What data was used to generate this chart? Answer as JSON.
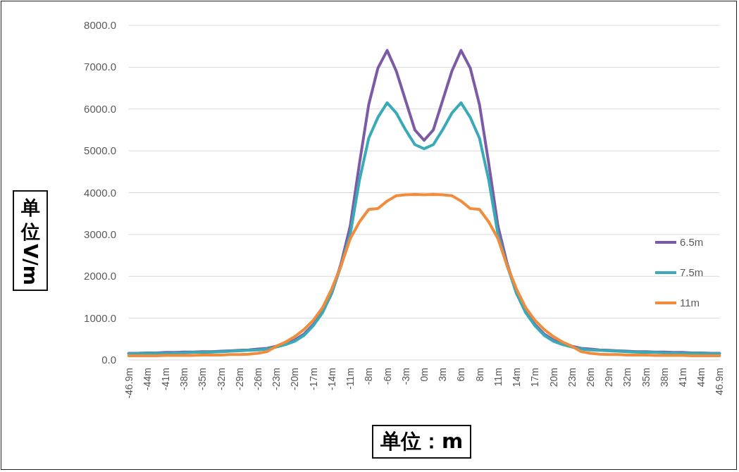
{
  "chart_data": {
    "type": "line",
    "xlabel": "单位：m",
    "ylabel": "单位V/m",
    "categories": [
      "-46.9m",
      null,
      "-44m",
      null,
      "-41m",
      null,
      "-38m",
      null,
      "-35m",
      null,
      "-32m",
      null,
      "-29m",
      null,
      "-26m",
      null,
      "-23m",
      null,
      "-20m",
      null,
      "-17m",
      null,
      "-14m",
      null,
      "-11m",
      null,
      "-8m",
      null,
      "-6m",
      null,
      "-3m",
      null,
      "0m",
      null,
      "3m",
      null,
      "6m",
      null,
      "8m",
      null,
      "11m",
      null,
      "14m",
      null,
      "17m",
      null,
      "20m",
      null,
      "23m",
      null,
      "26m",
      null,
      "29m",
      null,
      "32m",
      null,
      "35m",
      null,
      "38m",
      null,
      "41m",
      null,
      "44m",
      null,
      "46.9m"
    ],
    "series": [
      {
        "name": "6.5m",
        "color": "#7b5aa6",
        "values": [
          160,
          160,
          170,
          170,
          180,
          180,
          190,
          190,
          200,
          200,
          210,
          220,
          230,
          240,
          260,
          280,
          330,
          390,
          480,
          620,
          850,
          1150,
          1600,
          2300,
          3200,
          4700,
          6100,
          6980,
          7400,
          6900,
          6200,
          5500,
          5250,
          5500,
          6200,
          6900,
          7400,
          6980,
          6100,
          4700,
          3200,
          2300,
          1600,
          1150,
          850,
          620,
          480,
          390,
          330,
          280,
          260,
          240,
          230,
          220,
          210,
          200,
          200,
          190,
          190,
          180,
          180,
          170,
          170,
          160,
          160
        ]
      },
      {
        "name": "7.5m",
        "color": "#3aaab8",
        "values": [
          150,
          150,
          160,
          160,
          160,
          170,
          170,
          180,
          180,
          190,
          200,
          210,
          220,
          230,
          240,
          260,
          310,
          370,
          450,
          590,
          820,
          1130,
          1600,
          2250,
          3000,
          4300,
          5300,
          5800,
          6150,
          5900,
          5500,
          5150,
          5050,
          5150,
          5500,
          5900,
          6150,
          5800,
          5300,
          4300,
          3000,
          2250,
          1600,
          1130,
          820,
          590,
          450,
          370,
          310,
          260,
          240,
          230,
          220,
          210,
          200,
          190,
          180,
          180,
          170,
          170,
          160,
          160,
          160,
          150,
          150
        ]
      },
      {
        "name": "11m",
        "color": "#f08c3c",
        "values": [
          100,
          100,
          100,
          100,
          110,
          110,
          110,
          110,
          120,
          120,
          120,
          130,
          130,
          140,
          160,
          200,
          330,
          430,
          560,
          730,
          950,
          1250,
          1700,
          2250,
          2900,
          3300,
          3600,
          3620,
          3800,
          3930,
          3950,
          3960,
          3950,
          3960,
          3950,
          3930,
          3800,
          3620,
          3600,
          3300,
          2900,
          2250,
          1700,
          1250,
          950,
          730,
          560,
          430,
          330,
          200,
          160,
          140,
          130,
          130,
          120,
          120,
          120,
          110,
          110,
          110,
          110,
          100,
          100,
          100,
          100
        ]
      }
    ],
    "ylim": [
      0,
      8000
    ],
    "yticks": [
      {
        "value": 0,
        "label": "0.0"
      },
      {
        "value": 1000,
        "label": "1000.0"
      },
      {
        "value": 2000,
        "label": "2000.0"
      },
      {
        "value": 3000,
        "label": "3000.0"
      },
      {
        "value": 4000,
        "label": "4000.0"
      },
      {
        "value": 5000,
        "label": "5000.0"
      },
      {
        "value": 6000,
        "label": "6000.0"
      },
      {
        "value": 7000,
        "label": "7000.0"
      },
      {
        "value": 8000,
        "label": "8000.0"
      }
    ],
    "grid": "y",
    "legend": "right",
    "marker": "none",
    "line_style": "solid"
  }
}
